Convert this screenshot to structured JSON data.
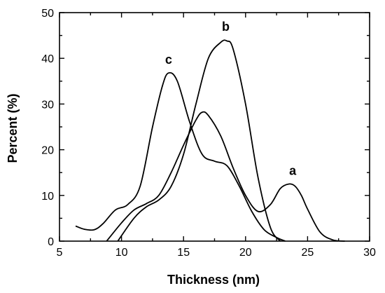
{
  "chart_data": {
    "type": "line",
    "xlabel": "Thickness (nm)",
    "ylabel": "Percent (%)",
    "xlim": [
      5,
      30
    ],
    "ylim": [
      0,
      50
    ],
    "xticks": [
      5,
      10,
      15,
      20,
      25,
      30
    ],
    "yticks": [
      0,
      10,
      20,
      30,
      40,
      50
    ],
    "grid": false,
    "series": [
      {
        "name": "a",
        "x": [
          8.8,
          10,
          11,
          12,
          13,
          14,
          15,
          16,
          16.5,
          17,
          18,
          19,
          20,
          21,
          22,
          22.8,
          23.5,
          24,
          24.5,
          25,
          26,
          27,
          28
        ],
        "y": [
          0,
          4,
          6.8,
          8.2,
          10,
          15,
          21,
          26.5,
          28.2,
          27.5,
          23,
          16,
          10,
          6.5,
          8,
          11.5,
          12.5,
          12,
          10,
          7,
          2,
          0.3,
          0
        ]
      },
      {
        "name": "b",
        "x": [
          9.7,
          11,
          12,
          13,
          14,
          15,
          16,
          17,
          18,
          18.5,
          19,
          20,
          21,
          22,
          22.8
        ],
        "y": [
          0,
          5,
          7.5,
          9,
          12,
          19,
          30,
          40,
          43.5,
          43.8,
          42,
          30,
          14,
          3,
          0
        ]
      },
      {
        "name": "c",
        "x": [
          6.3,
          7,
          7.8,
          8.5,
          9.5,
          10.5,
          11.5,
          12.5,
          13.3,
          13.8,
          14.5,
          15.5,
          16.5,
          17.5,
          18.5,
          19.5,
          20.5,
          21.5,
          22.5,
          23.2
        ],
        "y": [
          3.3,
          2.6,
          2.5,
          3.8,
          6.8,
          8,
          12,
          25,
          34,
          36.8,
          35,
          26,
          19,
          17.5,
          16.5,
          12,
          6.5,
          2.5,
          0.8,
          0
        ]
      }
    ],
    "annotations": [
      {
        "text": "a",
        "x": 23.8,
        "y": 14.5
      },
      {
        "text": "b",
        "x": 18.4,
        "y": 46.0
      },
      {
        "text": "c",
        "x": 13.8,
        "y": 38.8
      }
    ]
  }
}
